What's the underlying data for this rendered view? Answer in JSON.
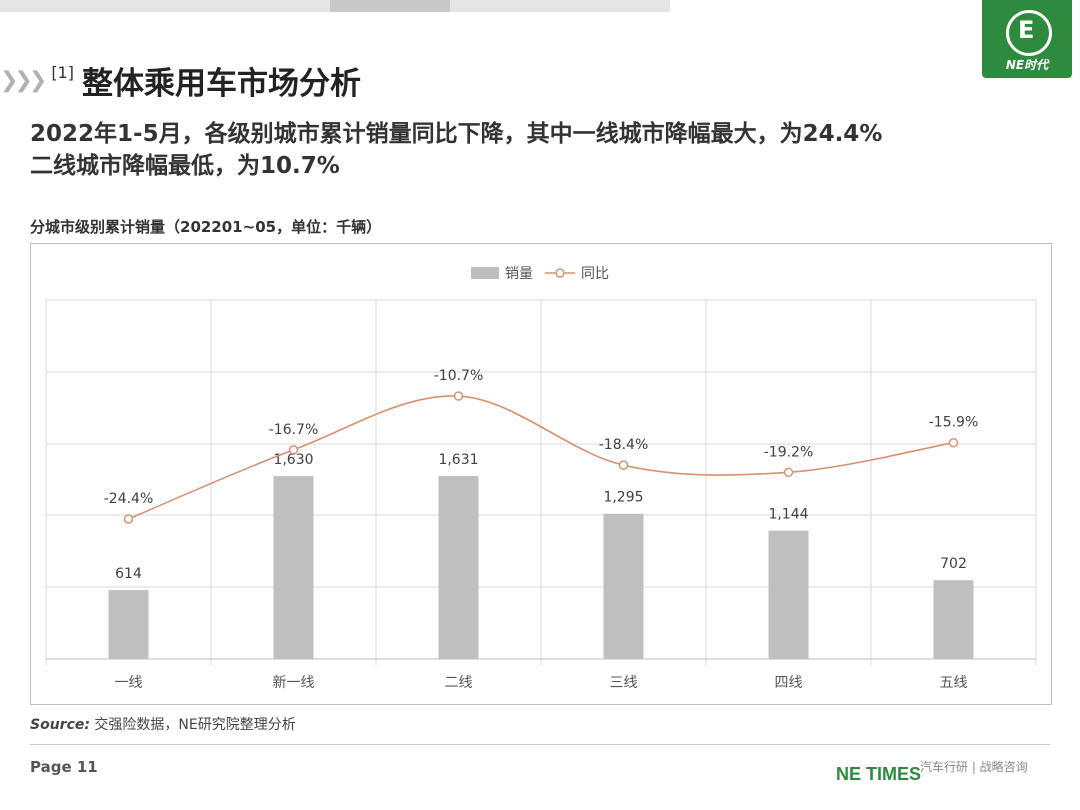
{
  "brand": {
    "logo_text": "NE时代",
    "footer_brand": "NE TIMES",
    "tagline": "汽车行研 | 战略咨询"
  },
  "page": {
    "section_number": "[1]",
    "title": "整体乘用车市场分析",
    "headline_line1": "2022年1-5月，各级别城市累计销量同比下降，其中一线城市降幅最大，为24.4%",
    "headline_line2": "二线城市降幅最低，为10.7%",
    "chart_title": "分城市级别累计销量（202201~05，单位：千辆）",
    "source_label": "Source:",
    "source_text": " 交强险数据，NE研究院整理分析",
    "page_number": "Page 11"
  },
  "colors": {
    "bar": "#bfbfbf",
    "line": "#d9906e",
    "brand_green": "#2e8b3e"
  },
  "chart_data": {
    "type": "bar",
    "categories": [
      "一线",
      "新一线",
      "二线",
      "三线",
      "四线",
      "五线"
    ],
    "series": [
      {
        "name": "销量",
        "type": "bar",
        "values": [
          614,
          1630,
          1631,
          1295,
          1144,
          702
        ],
        "labels": [
          "614",
          "1,630",
          "1,631",
          "1,295",
          "1,144",
          "702"
        ]
      },
      {
        "name": "同比",
        "type": "line",
        "values": [
          -24.4,
          -16.7,
          -10.7,
          -18.4,
          -19.2,
          -15.9
        ],
        "labels": [
          "-24.4%",
          "-16.7%",
          "-10.7%",
          "-18.4%",
          "-19.2%",
          "-15.9%"
        ]
      }
    ],
    "grid": true,
    "legend_position": "top-center"
  }
}
